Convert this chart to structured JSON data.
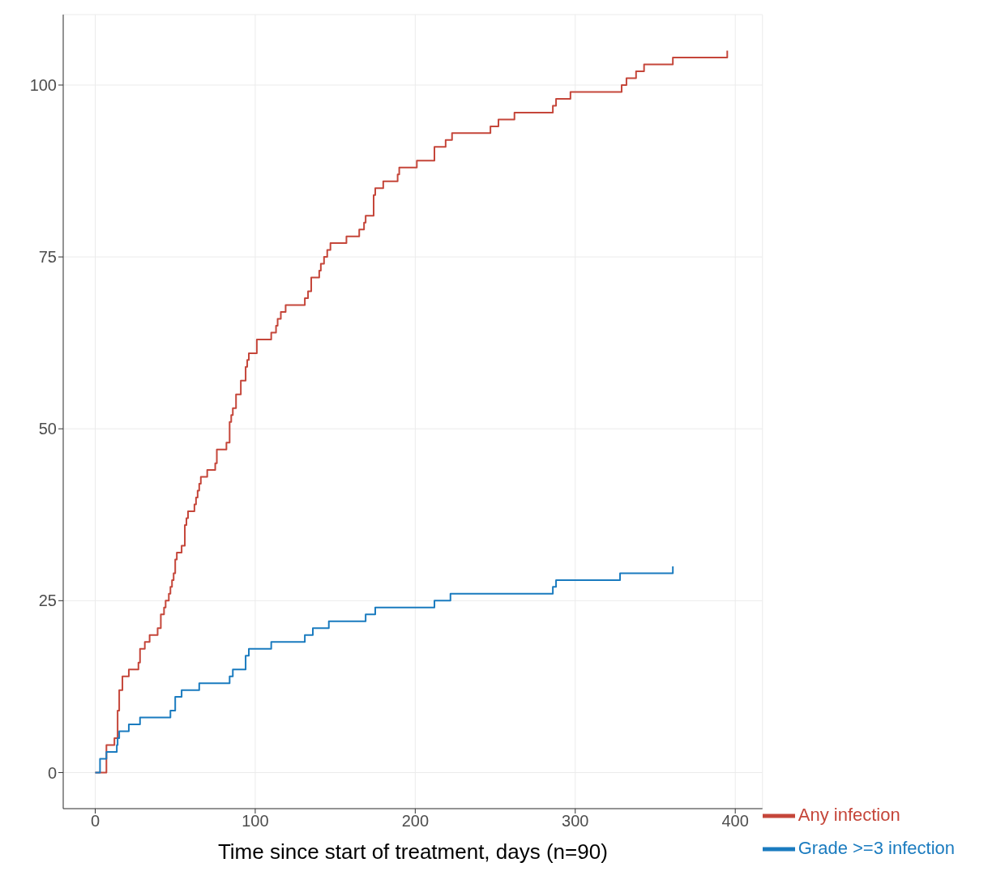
{
  "chart_data": {
    "type": "step",
    "xlabel": "Time since start of treatment, days (n=90)",
    "xlim": [
      -20,
      417
    ],
    "ylim": [
      -5.25,
      110.25
    ],
    "xticks": [
      0,
      100,
      200,
      300,
      400
    ],
    "yticks": [
      0,
      25,
      50,
      75,
      100
    ],
    "grid": true,
    "legend": "bottom right",
    "series": [
      {
        "name": "Any infection",
        "color": "#c5463a",
        "x": [
          0,
          7,
          12,
          14,
          15,
          17,
          21,
          27,
          28,
          31,
          34,
          39,
          41,
          43,
          44,
          46,
          47,
          48,
          49,
          50,
          51,
          54,
          56,
          57,
          58,
          62,
          63,
          64,
          65,
          66,
          70,
          75,
          76,
          82,
          84,
          85,
          86,
          88,
          91,
          94,
          95,
          96,
          101,
          110,
          113,
          114,
          116,
          119,
          131,
          133,
          135,
          140,
          141,
          143,
          145,
          147,
          157,
          165,
          168,
          169,
          174,
          175,
          180,
          189,
          190,
          201,
          212,
          219,
          223,
          247,
          252,
          262,
          286,
          288,
          297,
          329,
          332,
          338,
          343,
          361,
          395
        ],
        "values": [
          0,
          4,
          5,
          9,
          12,
          14,
          15,
          16,
          18,
          19,
          20,
          21,
          23,
          24,
          25,
          26,
          27,
          28,
          29,
          31,
          32,
          33,
          36,
          37,
          38,
          39,
          40,
          41,
          42,
          43,
          44,
          45,
          47,
          48,
          51,
          52,
          53,
          55,
          57,
          59,
          60,
          61,
          63,
          64,
          65,
          66,
          67,
          68,
          69,
          70,
          72,
          73,
          74,
          75,
          76,
          77,
          78,
          79,
          80,
          81,
          84,
          85,
          86,
          87,
          88,
          89,
          91,
          92,
          93,
          94,
          95,
          96,
          97,
          98,
          99,
          100,
          101,
          102,
          103,
          104,
          105
        ]
      },
      {
        "name": "Grade >=3 infection",
        "color": "#1a7bbf",
        "x": [
          0,
          3,
          7,
          13.5,
          14,
          15,
          21,
          28,
          47,
          50,
          54,
          65,
          84,
          86,
          94,
          96,
          110,
          131,
          136,
          146,
          169,
          175,
          212,
          222,
          286,
          288,
          328,
          361
        ],
        "values": [
          0,
          2,
          3,
          4,
          5,
          6,
          7,
          8,
          9,
          11,
          12,
          13,
          14,
          15,
          17,
          18,
          19,
          20,
          21,
          22,
          23,
          24,
          25,
          26,
          27,
          28,
          29,
          30
        ]
      }
    ]
  }
}
